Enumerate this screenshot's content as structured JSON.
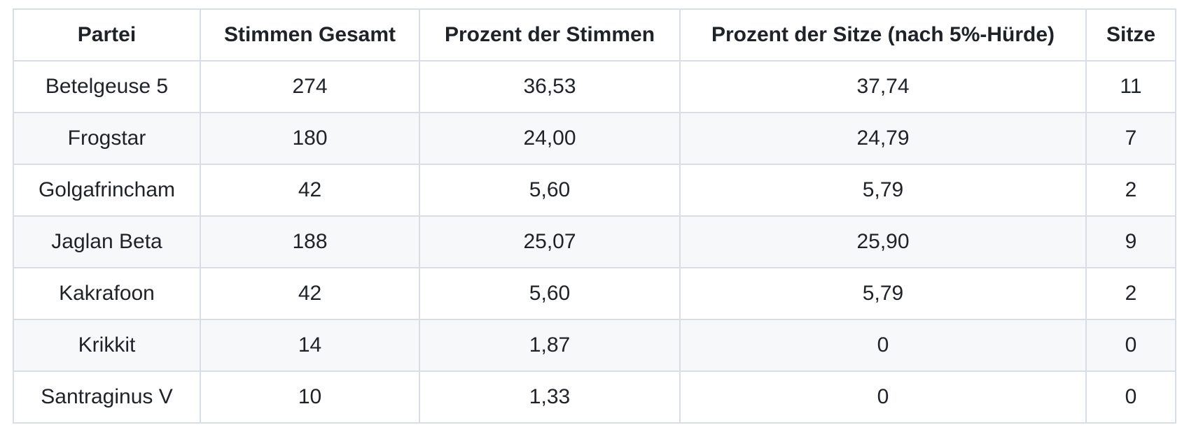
{
  "chart_data": {
    "type": "table",
    "title": "",
    "columns": [
      "Partei",
      "Stimmen Gesamt",
      "Prozent der Stimmen",
      "Prozent der Sitze (nach 5%-Hürde)",
      "Sitze"
    ],
    "rows": [
      [
        "Betelgeuse 5",
        "274",
        "36,53",
        "37,74",
        "11"
      ],
      [
        "Frogstar",
        "180",
        "24,00",
        "24,79",
        "7"
      ],
      [
        "Golgafrincham",
        "42",
        "5,60",
        "5,79",
        "2"
      ],
      [
        "Jaglan Beta",
        "188",
        "25,07",
        "25,90",
        "9"
      ],
      [
        "Kakrafoon",
        "42",
        "5,60",
        "5,79",
        "2"
      ],
      [
        "Krikkit",
        "14",
        "1,87",
        "0",
        "0"
      ],
      [
        "Santraginus V",
        "10",
        "1,33",
        "0",
        "0"
      ]
    ],
    "layout_hints": {
      "header_row": true,
      "zebra_striping": "even body rows",
      "cell_alignment": "center"
    }
  },
  "colors": {
    "background": "#ffffff",
    "stripe": "#f6f8fa",
    "border": "#d8dee4",
    "text": "#1f2328"
  }
}
